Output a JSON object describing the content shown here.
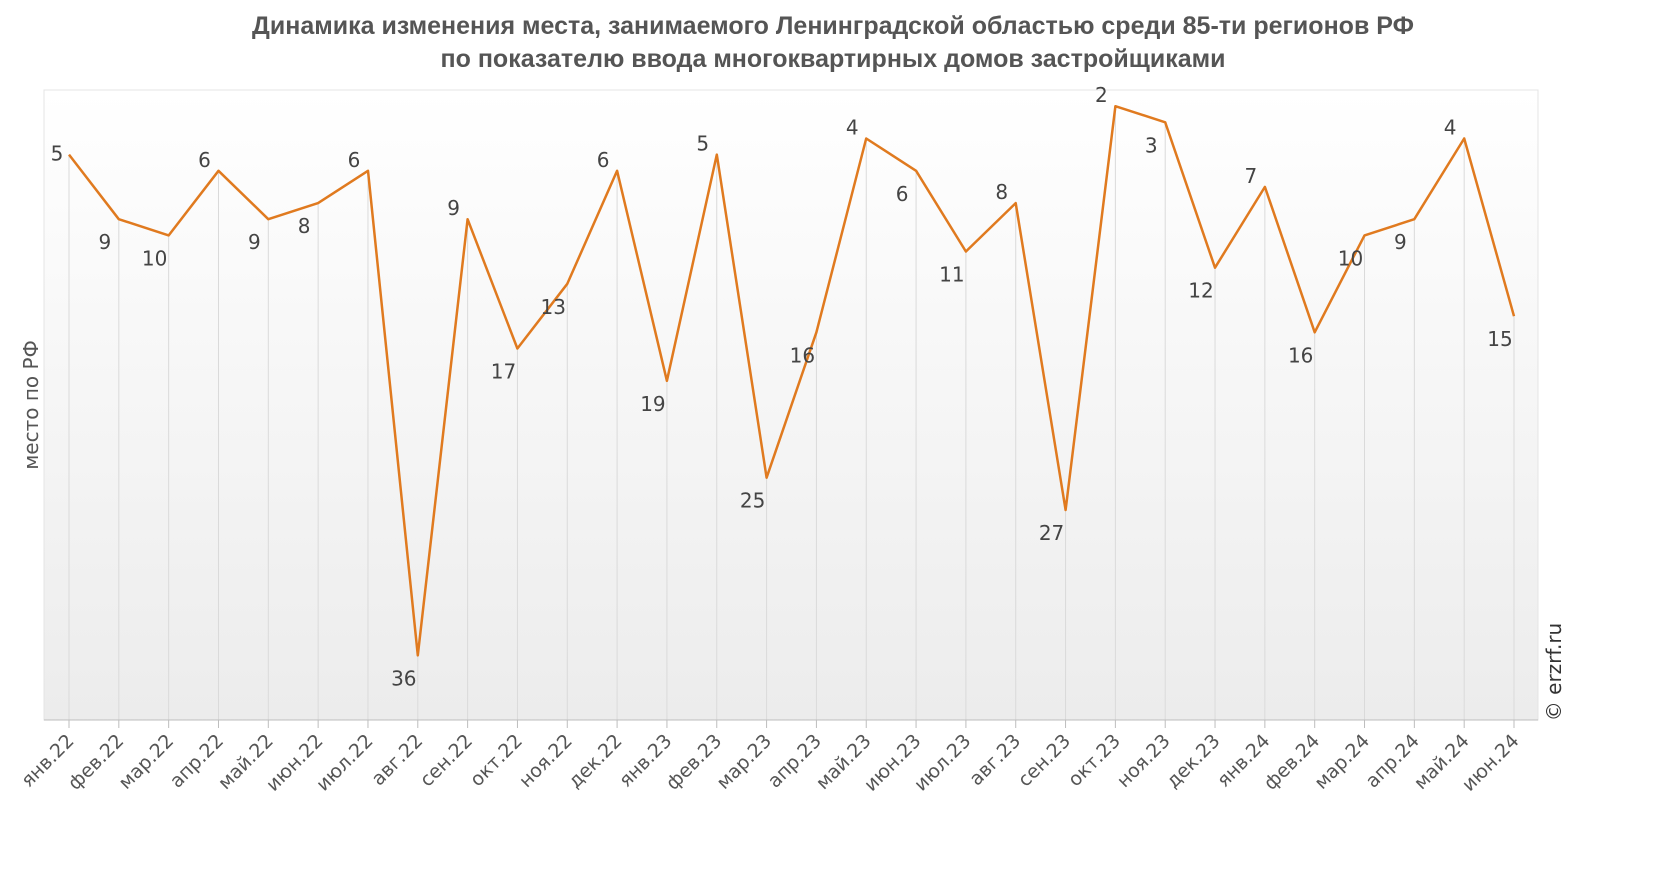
{
  "chart_data": {
    "type": "line",
    "title_line1": "Динамика изменения места, занимаемого Ленинградской областью среди 85-ти регионов РФ",
    "title_line2": "по показателю ввода многоквартирных домов застройщиками",
    "ylabel": "место по РФ",
    "xlabel": "",
    "y_inverted": true,
    "ylim": [
      1,
      40
    ],
    "grid": "vertical",
    "categories": [
      "янв.22",
      "фев.22",
      "мар.22",
      "апр.22",
      "май.22",
      "июн.22",
      "июл.22",
      "авг.22",
      "сен.22",
      "окт.22",
      "ноя.22",
      "дек.22",
      "янв.23",
      "фев.23",
      "мар.23",
      "апр.23",
      "май.23",
      "июн.23",
      "июл.23",
      "авг.23",
      "сен.23",
      "окт.23",
      "ноя.23",
      "дек.23",
      "янв.24",
      "фев.24",
      "мар.24",
      "апр.24",
      "май.24",
      "июн.24"
    ],
    "series": [
      {
        "values": [
          5,
          9,
          10,
          6,
          9,
          8,
          6,
          36,
          9,
          17,
          13,
          6,
          19,
          5,
          25,
          16,
          4,
          6,
          11,
          8,
          27,
          2,
          3,
          12,
          7,
          16,
          10,
          9,
          4,
          15
        ]
      }
    ],
    "line_color": "#E07A1F",
    "copyright": "© erzrf.ru"
  }
}
